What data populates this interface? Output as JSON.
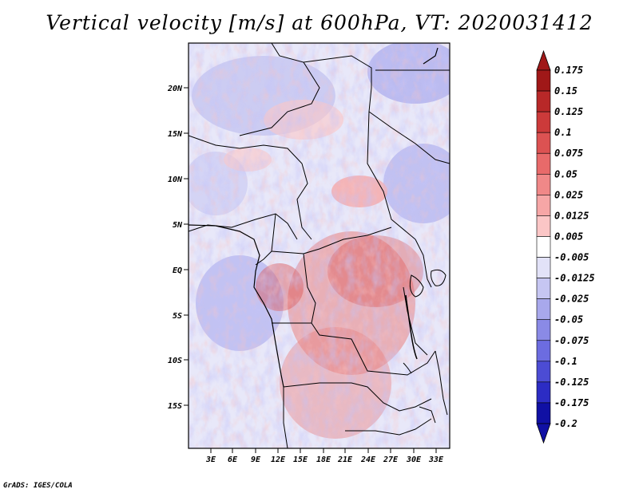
{
  "title": "Vertical velocity [m/s] at 600hPa, VT: 2020031412",
  "credit": "GrADS: IGES/COLA",
  "map": {
    "lat_ticks": [
      "20N",
      "15N",
      "10N",
      "5N",
      "EQ",
      "5S",
      "10S",
      "15S"
    ],
    "lon_ticks": [
      "3E",
      "6E",
      "9E",
      "12E",
      "15E",
      "18E",
      "21E",
      "24E",
      "27E",
      "30E",
      "33E"
    ]
  },
  "colorbar": {
    "labels": [
      "0.175",
      "0.15",
      "0.125",
      "0.1",
      "0.075",
      "0.05",
      "0.025",
      "0.0125",
      "0.005",
      "-0.005",
      "-0.0125",
      "-0.025",
      "-0.05",
      "-0.075",
      "-0.1",
      "-0.125",
      "-0.175",
      "-0.2"
    ],
    "colors": [
      "#a01818",
      "#b82828",
      "#cc3a3a",
      "#dc5252",
      "#e86a6a",
      "#f08888",
      "#f6a6a6",
      "#fbc6c6",
      "#fde4e4",
      "#ffffff",
      "#e2e2f8",
      "#c6c6f2",
      "#a8a8ec",
      "#8a8ae6",
      "#6c6ce0",
      "#4c4cd4",
      "#2c2cc4",
      "#1010a4"
    ]
  }
}
